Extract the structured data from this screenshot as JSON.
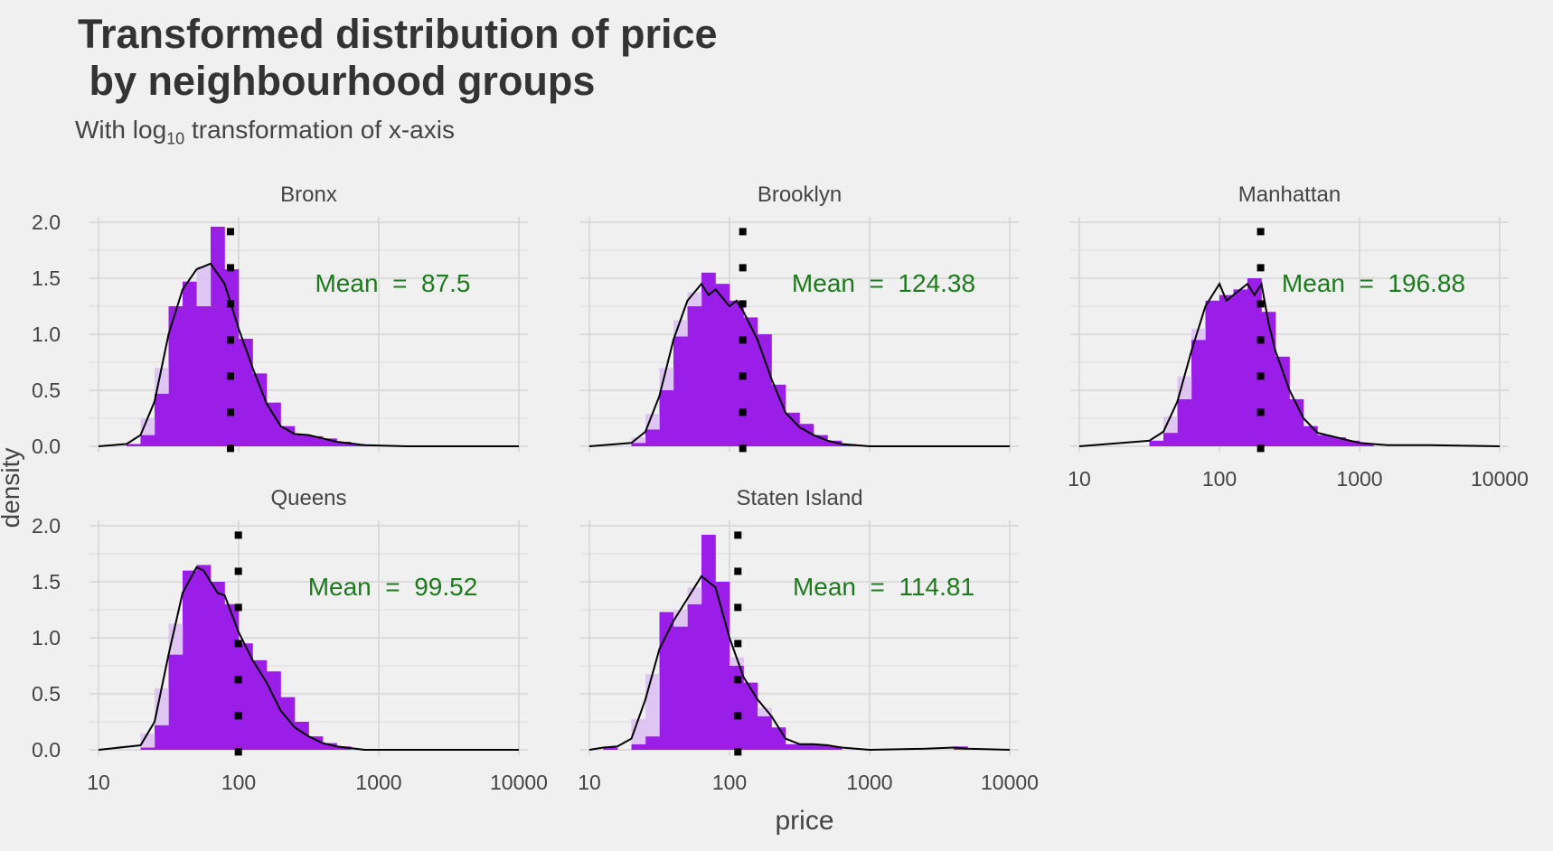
{
  "title_line1": "Transformed distribution of price",
  "title_line2": " by neighbourhood groups",
  "subtitle_prefix": "With log",
  "subtitle_sub": "10",
  "subtitle_suffix": " transformation of x-axis",
  "colors": {
    "background": "#f0f0f0",
    "grid": "#d6d6d6",
    "bar": "#9a1ee8",
    "bar_light": "#dcbdf2",
    "density_line": "#000000",
    "mean_text": "#1e7a1e",
    "mean_line": "#000000"
  },
  "chart_data": {
    "type": "histogram+density",
    "xlabel": "price",
    "ylabel": "density",
    "x_scale": "log10",
    "xlim": [
      10,
      10000
    ],
    "ylim": [
      0,
      2.0
    ],
    "x_ticks": [
      10,
      100,
      1000,
      10000
    ],
    "x_tick_labels": [
      "10",
      "100",
      "1000",
      "10000"
    ],
    "y_ticks": [
      0,
      0.5,
      1.0,
      1.5,
      2.0
    ],
    "y_tick_labels": [
      "0.0",
      "0.5",
      "1.0",
      "1.5",
      "2.0"
    ],
    "mean_label_prefix": "Mean  =  ",
    "bin_width_log10": 0.1,
    "panels": [
      {
        "name": "Bronx",
        "mean": 87.5,
        "mean_label": "87.5",
        "bins": [
          [
            1.2,
            0.02
          ],
          [
            1.3,
            0.1
          ],
          [
            1.4,
            0.47
          ],
          [
            1.5,
            1.25
          ],
          [
            1.6,
            1.47
          ],
          [
            1.7,
            1.25
          ],
          [
            1.8,
            1.96
          ],
          [
            1.9,
            1.58
          ],
          [
            2.0,
            0.96
          ],
          [
            2.1,
            0.65
          ],
          [
            2.2,
            0.39
          ],
          [
            2.3,
            0.18
          ],
          [
            2.4,
            0.1
          ],
          [
            2.5,
            0.09
          ],
          [
            2.6,
            0.07
          ],
          [
            2.7,
            0.04
          ],
          [
            2.8,
            0.02
          ],
          [
            2.9,
            0.01
          ]
        ],
        "density": [
          [
            1.0,
            0
          ],
          [
            1.2,
            0.02
          ],
          [
            1.3,
            0.1
          ],
          [
            1.4,
            0.4
          ],
          [
            1.5,
            1.0
          ],
          [
            1.6,
            1.4
          ],
          [
            1.7,
            1.58
          ],
          [
            1.8,
            1.63
          ],
          [
            1.9,
            1.45
          ],
          [
            2.0,
            1.05
          ],
          [
            2.1,
            0.7
          ],
          [
            2.2,
            0.38
          ],
          [
            2.3,
            0.18
          ],
          [
            2.4,
            0.11
          ],
          [
            2.5,
            0.1
          ],
          [
            2.6,
            0.07
          ],
          [
            2.7,
            0.04
          ],
          [
            2.9,
            0.01
          ],
          [
            3.2,
            0
          ],
          [
            4.0,
            0
          ]
        ]
      },
      {
        "name": "Brooklyn",
        "mean": 124.38,
        "mean_label": "124.38",
        "bins": [
          [
            1.3,
            0.03
          ],
          [
            1.4,
            0.15
          ],
          [
            1.5,
            0.5
          ],
          [
            1.6,
            0.98
          ],
          [
            1.7,
            1.25
          ],
          [
            1.8,
            1.55
          ],
          [
            1.9,
            1.45
          ],
          [
            2.0,
            1.3
          ],
          [
            2.1,
            1.15
          ],
          [
            2.2,
            1.0
          ],
          [
            2.3,
            0.55
          ],
          [
            2.4,
            0.3
          ],
          [
            2.5,
            0.2
          ],
          [
            2.6,
            0.1
          ],
          [
            2.7,
            0.05
          ],
          [
            2.8,
            0.02
          ]
        ],
        "density": [
          [
            1.0,
            0
          ],
          [
            1.3,
            0.03
          ],
          [
            1.4,
            0.13
          ],
          [
            1.5,
            0.45
          ],
          [
            1.6,
            0.95
          ],
          [
            1.7,
            1.3
          ],
          [
            1.8,
            1.45
          ],
          [
            1.85,
            1.35
          ],
          [
            1.9,
            1.4
          ],
          [
            2.0,
            1.25
          ],
          [
            2.05,
            1.3
          ],
          [
            2.1,
            1.2
          ],
          [
            2.2,
            0.95
          ],
          [
            2.3,
            0.6
          ],
          [
            2.4,
            0.3
          ],
          [
            2.5,
            0.17
          ],
          [
            2.6,
            0.1
          ],
          [
            2.7,
            0.05
          ],
          [
            2.8,
            0.02
          ],
          [
            3.0,
            0
          ],
          [
            4.0,
            0
          ]
        ]
      },
      {
        "name": "Manhattan",
        "mean": 196.88,
        "mean_label": "196.88",
        "bins": [
          [
            1.5,
            0.05
          ],
          [
            1.6,
            0.12
          ],
          [
            1.7,
            0.42
          ],
          [
            1.8,
            0.95
          ],
          [
            1.9,
            1.3
          ],
          [
            2.0,
            1.35
          ],
          [
            2.1,
            1.4
          ],
          [
            2.2,
            1.5
          ],
          [
            2.3,
            1.2
          ],
          [
            2.4,
            0.8
          ],
          [
            2.5,
            0.42
          ],
          [
            2.6,
            0.18
          ],
          [
            2.7,
            0.1
          ],
          [
            2.8,
            0.08
          ],
          [
            2.9,
            0.05
          ],
          [
            3.0,
            0.02
          ]
        ],
        "density": [
          [
            1.0,
            0
          ],
          [
            1.5,
            0.05
          ],
          [
            1.6,
            0.13
          ],
          [
            1.7,
            0.4
          ],
          [
            1.8,
            0.85
          ],
          [
            1.9,
            1.25
          ],
          [
            2.0,
            1.45
          ],
          [
            2.05,
            1.3
          ],
          [
            2.1,
            1.35
          ],
          [
            2.2,
            1.45
          ],
          [
            2.25,
            1.35
          ],
          [
            2.3,
            1.45
          ],
          [
            2.35,
            1.1
          ],
          [
            2.4,
            0.85
          ],
          [
            2.5,
            0.5
          ],
          [
            2.6,
            0.25
          ],
          [
            2.7,
            0.12
          ],
          [
            2.8,
            0.09
          ],
          [
            2.9,
            0.06
          ],
          [
            3.0,
            0.03
          ],
          [
            3.2,
            0.01
          ],
          [
            3.5,
            0.01
          ],
          [
            4.0,
            0
          ]
        ]
      },
      {
        "name": "Queens",
        "mean": 99.52,
        "mean_label": "99.52",
        "bins": [
          [
            1.3,
            0.02
          ],
          [
            1.4,
            0.22
          ],
          [
            1.5,
            0.85
          ],
          [
            1.6,
            1.6
          ],
          [
            1.7,
            1.65
          ],
          [
            1.8,
            1.5
          ],
          [
            1.9,
            1.3
          ],
          [
            2.0,
            0.95
          ],
          [
            2.1,
            0.8
          ],
          [
            2.2,
            0.7
          ],
          [
            2.3,
            0.47
          ],
          [
            2.4,
            0.25
          ],
          [
            2.5,
            0.12
          ],
          [
            2.6,
            0.06
          ],
          [
            2.7,
            0.03
          ]
        ],
        "density": [
          [
            1.0,
            0
          ],
          [
            1.3,
            0.04
          ],
          [
            1.4,
            0.25
          ],
          [
            1.5,
            0.85
          ],
          [
            1.6,
            1.4
          ],
          [
            1.7,
            1.63
          ],
          [
            1.75,
            1.6
          ],
          [
            1.8,
            1.5
          ],
          [
            1.85,
            1.4
          ],
          [
            1.9,
            1.38
          ],
          [
            2.0,
            1.05
          ],
          [
            2.1,
            0.8
          ],
          [
            2.2,
            0.6
          ],
          [
            2.3,
            0.35
          ],
          [
            2.4,
            0.2
          ],
          [
            2.5,
            0.12
          ],
          [
            2.6,
            0.06
          ],
          [
            2.7,
            0.03
          ],
          [
            2.9,
            0
          ],
          [
            4.0,
            0
          ]
        ]
      },
      {
        "name": "Staten Island",
        "mean": 114.81,
        "mean_label": "114.81",
        "bins": [
          [
            1.1,
            0.02
          ],
          [
            1.3,
            0.05
          ],
          [
            1.4,
            0.12
          ],
          [
            1.5,
            1.23
          ],
          [
            1.6,
            1.1
          ],
          [
            1.7,
            1.3
          ],
          [
            1.8,
            1.92
          ],
          [
            1.9,
            1.5
          ],
          [
            2.0,
            0.75
          ],
          [
            2.1,
            0.6
          ],
          [
            2.2,
            0.3
          ],
          [
            2.3,
            0.2
          ],
          [
            2.4,
            0.05
          ],
          [
            2.5,
            0.05
          ],
          [
            2.6,
            0.05
          ],
          [
            2.7,
            0.03
          ],
          [
            3.6,
            0.03
          ]
        ],
        "density": [
          [
            1.0,
            0
          ],
          [
            1.1,
            0.02
          ],
          [
            1.2,
            0.03
          ],
          [
            1.3,
            0.1
          ],
          [
            1.4,
            0.45
          ],
          [
            1.5,
            0.9
          ],
          [
            1.6,
            1.15
          ],
          [
            1.7,
            1.35
          ],
          [
            1.8,
            1.55
          ],
          [
            1.9,
            1.45
          ],
          [
            2.0,
            1.0
          ],
          [
            2.1,
            0.65
          ],
          [
            2.2,
            0.45
          ],
          [
            2.3,
            0.3
          ],
          [
            2.4,
            0.1
          ],
          [
            2.5,
            0.05
          ],
          [
            2.6,
            0.05
          ],
          [
            2.7,
            0.04
          ],
          [
            2.8,
            0.02
          ],
          [
            3.0,
            0
          ],
          [
            3.4,
            0.01
          ],
          [
            3.6,
            0.02
          ],
          [
            3.7,
            0.01
          ],
          [
            4.0,
            0
          ]
        ]
      }
    ]
  }
}
